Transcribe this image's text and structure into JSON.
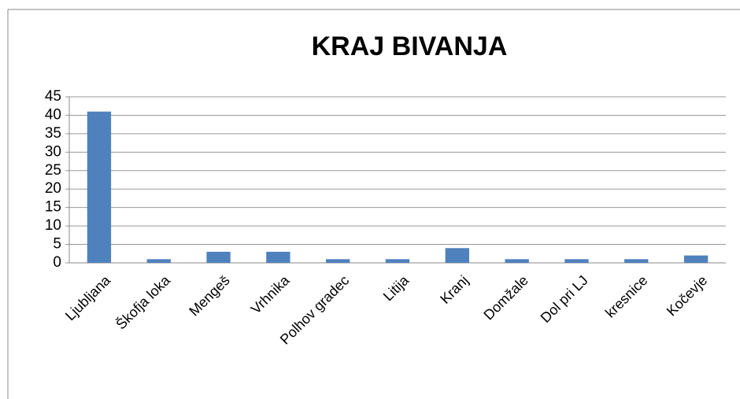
{
  "chart_data": {
    "type": "bar",
    "title": "KRAJ BIVANJA",
    "categories": [
      "Ljubljana",
      "Škofja loka",
      "Mengeš",
      "Vrhnika",
      "Polhov gradec",
      "Litija",
      "Kranj",
      "Domžale",
      "Dol pri LJ",
      "kresnice",
      "Kočevje"
    ],
    "values": [
      41,
      1,
      3,
      3,
      1,
      1,
      4,
      1,
      1,
      1,
      2
    ],
    "color": "#4f81bd",
    "ylim": [
      0,
      45
    ],
    "yticks": [
      0,
      5,
      10,
      15,
      20,
      25,
      30,
      35,
      40,
      45
    ],
    "grid": true
  }
}
